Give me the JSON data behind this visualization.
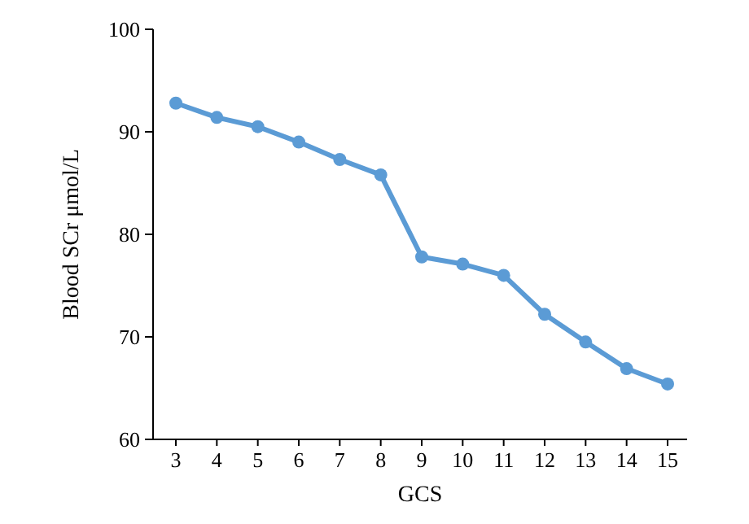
{
  "chart_data": {
    "type": "line",
    "xlabel": "GCS",
    "ylabel": "Blood SCr μmol/L",
    "categories": [
      "3",
      "4",
      "5",
      "6",
      "7",
      "8",
      "9",
      "10",
      "11",
      "12",
      "13",
      "14",
      "15"
    ],
    "series": [
      {
        "color": "#5b9bd5",
        "values": [
          92.8,
          91.4,
          90.5,
          89,
          87.3,
          85.8,
          77.8,
          77.1,
          76,
          72.2,
          69.5,
          66.9,
          65.4
        ]
      }
    ],
    "ylim": [
      60,
      100
    ],
    "yticks": [
      60,
      70,
      80,
      90,
      100
    ],
    "grid": false,
    "marker": "circle",
    "line_style": "solid"
  }
}
